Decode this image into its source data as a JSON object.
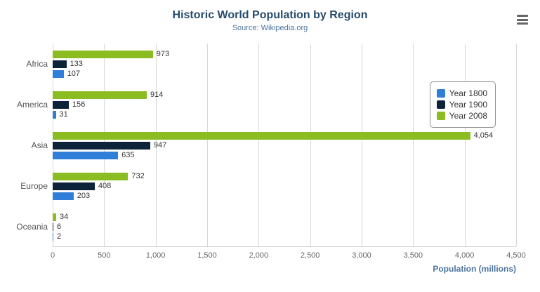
{
  "chart_data": {
    "type": "bar",
    "orientation": "horizontal",
    "title": "Historic World Population by Region",
    "subtitle": "Source: Wikipedia.org",
    "categories": [
      "Africa",
      "America",
      "Asia",
      "Europe",
      "Oceania"
    ],
    "series": [
      {
        "name": "Year 1800",
        "color": "#2f7ed8",
        "values": [
          107,
          31,
          635,
          203,
          2
        ]
      },
      {
        "name": "Year 1900",
        "color": "#0d233a",
        "values": [
          133,
          156,
          947,
          408,
          6
        ]
      },
      {
        "name": "Year 2008",
        "color": "#8bbc21",
        "values": [
          973,
          914,
          4054,
          732,
          34
        ]
      }
    ],
    "bar_order_top_to_bottom": [
      "Year 2008",
      "Year 1900",
      "Year 1800"
    ],
    "xlabel": "Population (millions)",
    "xlim": [
      0,
      4500
    ],
    "xticks": [
      0,
      500,
      1000,
      1500,
      2000,
      2500,
      3000,
      3500,
      4000,
      4500
    ],
    "xtick_labels": [
      "0",
      "500",
      "1,000",
      "1,500",
      "2,000",
      "2,500",
      "3,000",
      "3,500",
      "4,000",
      "4,500"
    ],
    "grid": true,
    "data_labels": true,
    "legend_position": "right"
  },
  "export_menu": {
    "icon": "hamburger-menu-icon"
  },
  "colors": {
    "title": "#274b6d",
    "subtitle": "#4d759e",
    "axis_title": "#4d759e",
    "axis_labels": "#666666",
    "gridline": "#d8d8d8"
  }
}
